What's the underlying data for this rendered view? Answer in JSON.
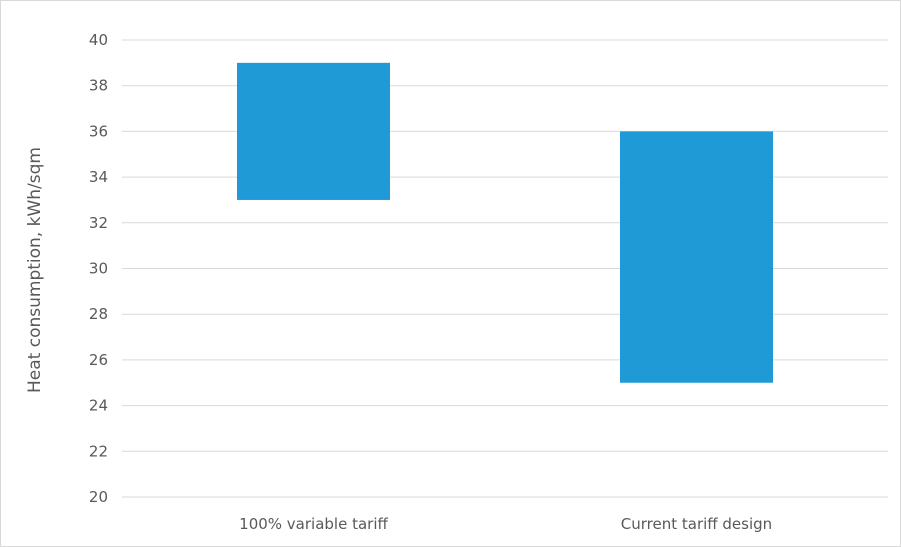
{
  "chart_data": {
    "type": "bar",
    "subtype": "floating-range",
    "categories": [
      "100% variable tariff",
      "Current tariff design"
    ],
    "ranges": [
      {
        "low": 33,
        "high": 39
      },
      {
        "low": 25,
        "high": 36
      }
    ],
    "title": "",
    "xlabel": "",
    "ylabel": "Heat consumption, kWh/sqm",
    "ylim": [
      20,
      40
    ],
    "yticks": [
      20,
      22,
      24,
      26,
      28,
      30,
      32,
      34,
      36,
      38,
      40
    ],
    "grid": true,
    "legend": "none",
    "colors": {
      "bar": "#1f9ad6",
      "grid": "#d9d9d9",
      "text": "#595959"
    }
  }
}
